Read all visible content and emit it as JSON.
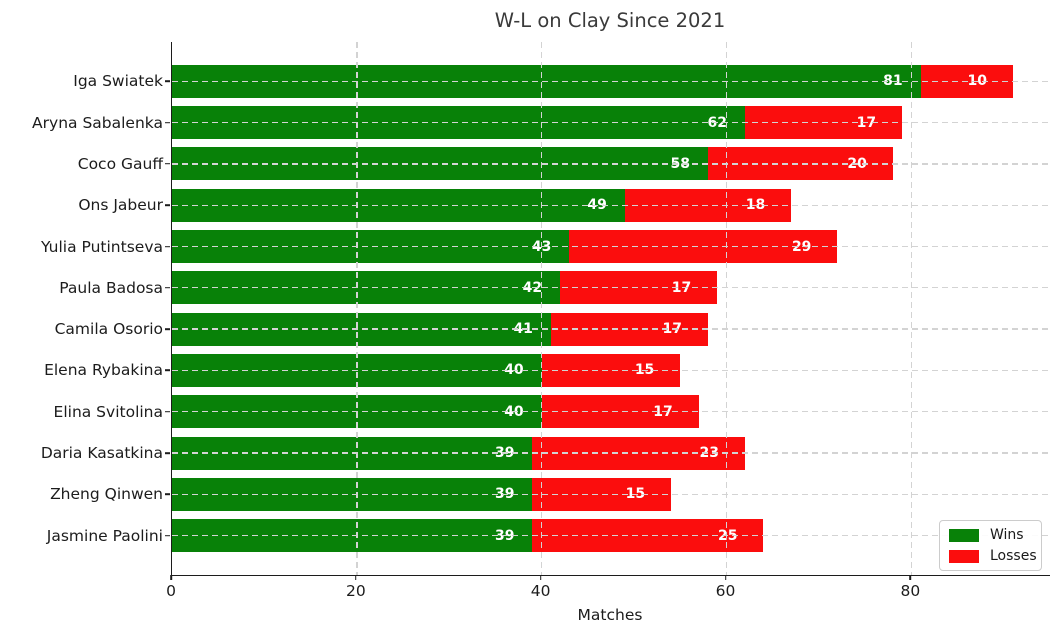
{
  "chart_data": {
    "type": "bar",
    "orientation": "horizontal",
    "stacked": true,
    "title": "W-L on Clay Since 2021",
    "xlabel": "Matches",
    "ylabel": "",
    "categories": [
      "Iga Swiatek",
      "Aryna Sabalenka",
      "Coco Gauff",
      "Ons Jabeur",
      "Yulia Putintseva",
      "Paula Badosa",
      "Camila Osorio",
      "Elena Rybakina",
      "Elina Svitolina",
      "Daria Kasatkina",
      "Zheng Qinwen",
      "Jasmine Paolini"
    ],
    "series": [
      {
        "name": "Wins",
        "color": "#088108",
        "values": [
          81,
          62,
          58,
          49,
          43,
          42,
          41,
          40,
          40,
          39,
          39,
          39
        ]
      },
      {
        "name": "Losses",
        "color": "#fb0d0d",
        "values": [
          10,
          17,
          20,
          18,
          29,
          17,
          17,
          15,
          17,
          23,
          15,
          25
        ]
      }
    ],
    "xticks": [
      0,
      20,
      40,
      60,
      80
    ],
    "xlim": [
      0,
      95
    ],
    "grid": "dashed, lightgray, drawn over bars",
    "legend_position": "lower right",
    "bar_labels": "white bold values inside segments"
  }
}
